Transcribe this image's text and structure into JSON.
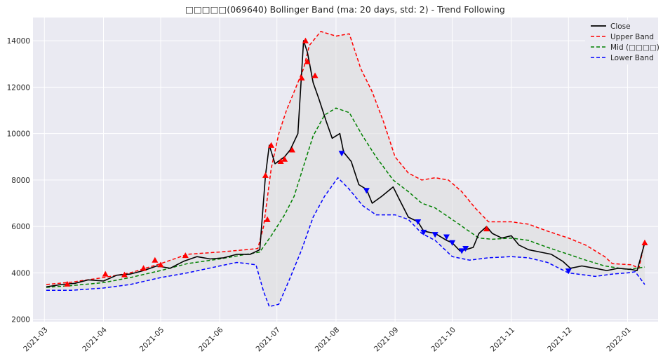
{
  "chart_data": {
    "type": "line",
    "title": "□□□□□(069640) Bollinger Band (ma: 20 days, std: 2) - Trend Following",
    "xlabel": "",
    "ylabel": "",
    "x_ticks": [
      "2021-03",
      "2021-04",
      "2021-05",
      "2021-06",
      "2021-07",
      "2021-08",
      "2021-09",
      "2021-10",
      "2021-11",
      "2021-12",
      "2022-01"
    ],
    "y_ticks": [
      2000,
      4000,
      6000,
      8000,
      10000,
      12000,
      14000
    ],
    "xlim": [
      "2021-02-23",
      "2022-01-17"
    ],
    "ylim": [
      1900,
      15000
    ],
    "grid": true,
    "legend_position": "top-right",
    "series": [
      {
        "name": "Close",
        "color": "#000000",
        "dash": "solid",
        "points": [
          [
            "2021-03-02",
            3400
          ],
          [
            "2021-03-10",
            3500
          ],
          [
            "2021-03-17",
            3550
          ],
          [
            "2021-03-24",
            3700
          ],
          [
            "2021-04-01",
            3650
          ],
          [
            "2021-04-08",
            3900
          ],
          [
            "2021-04-15",
            3950
          ],
          [
            "2021-04-22",
            4100
          ],
          [
            "2021-04-29",
            4300
          ],
          [
            "2021-05-06",
            4200
          ],
          [
            "2021-05-13",
            4500
          ],
          [
            "2021-05-20",
            4700
          ],
          [
            "2021-05-27",
            4600
          ],
          [
            "2021-06-03",
            4650
          ],
          [
            "2021-06-10",
            4800
          ],
          [
            "2021-06-17",
            4800
          ],
          [
            "2021-06-22",
            5000
          ],
          [
            "2021-06-25",
            8200
          ],
          [
            "2021-06-27",
            9500
          ],
          [
            "2021-06-30",
            8700
          ],
          [
            "2021-07-05",
            9000
          ],
          [
            "2021-07-08",
            9300
          ],
          [
            "2021-07-12",
            10000
          ],
          [
            "2021-07-15",
            14000
          ],
          [
            "2021-07-17",
            13500
          ],
          [
            "2021-07-20",
            12200
          ],
          [
            "2021-07-23",
            11500
          ],
          [
            "2021-07-27",
            10500
          ],
          [
            "2021-07-30",
            9800
          ],
          [
            "2021-08-03",
            10000
          ],
          [
            "2021-08-05",
            9200
          ],
          [
            "2021-08-09",
            8800
          ],
          [
            "2021-08-13",
            7800
          ],
          [
            "2021-08-17",
            7600
          ],
          [
            "2021-08-20",
            7000
          ],
          [
            "2021-08-25",
            7300
          ],
          [
            "2021-08-31",
            7700
          ],
          [
            "2021-09-03",
            7200
          ],
          [
            "2021-09-08",
            6400
          ],
          [
            "2021-09-13",
            6200
          ],
          [
            "2021-09-16",
            5800
          ],
          [
            "2021-09-22",
            5700
          ],
          [
            "2021-09-28",
            5400
          ],
          [
            "2021-10-01",
            5300
          ],
          [
            "2021-10-05",
            4950
          ],
          [
            "2021-10-08",
            5000
          ],
          [
            "2021-10-12",
            5100
          ],
          [
            "2021-10-15",
            5700
          ],
          [
            "2021-10-19",
            6000
          ],
          [
            "2021-10-22",
            5700
          ],
          [
            "2021-10-27",
            5500
          ],
          [
            "2021-11-01",
            5600
          ],
          [
            "2021-11-05",
            5200
          ],
          [
            "2021-11-10",
            5000
          ],
          [
            "2021-11-16",
            4900
          ],
          [
            "2021-11-22",
            4800
          ],
          [
            "2021-11-28",
            4500
          ],
          [
            "2021-12-02",
            4200
          ],
          [
            "2021-12-08",
            4300
          ],
          [
            "2021-12-15",
            4200
          ],
          [
            "2021-12-21",
            4100
          ],
          [
            "2021-12-27",
            4200
          ],
          [
            "2022-01-03",
            4150
          ],
          [
            "2022-01-06",
            4100
          ],
          [
            "2022-01-10",
            5300
          ]
        ]
      },
      {
        "name": "Upper Band",
        "color": "#ff0000",
        "dash": "dashed",
        "points": [
          [
            "2021-03-02",
            3500
          ],
          [
            "2021-03-15",
            3600
          ],
          [
            "2021-04-01",
            3800
          ],
          [
            "2021-04-15",
            4000
          ],
          [
            "2021-05-01",
            4400
          ],
          [
            "2021-05-15",
            4800
          ],
          [
            "2021-06-01",
            4900
          ],
          [
            "2021-06-15",
            5000
          ],
          [
            "2021-06-21",
            5050
          ],
          [
            "2021-06-24",
            6000
          ],
          [
            "2021-06-28",
            8500
          ],
          [
            "2021-07-02",
            10000
          ],
          [
            "2021-07-06",
            11000
          ],
          [
            "2021-07-10",
            11800
          ],
          [
            "2021-07-15",
            12800
          ],
          [
            "2021-07-18",
            13800
          ],
          [
            "2021-07-24",
            14400
          ],
          [
            "2021-08-01",
            14200
          ],
          [
            "2021-08-08",
            14300
          ],
          [
            "2021-08-14",
            12800
          ],
          [
            "2021-08-20",
            11800
          ],
          [
            "2021-08-26",
            10500
          ],
          [
            "2021-09-01",
            9000
          ],
          [
            "2021-09-08",
            8300
          ],
          [
            "2021-09-15",
            8000
          ],
          [
            "2021-09-22",
            8100
          ],
          [
            "2021-09-29",
            8000
          ],
          [
            "2021-10-06",
            7500
          ],
          [
            "2021-10-13",
            6800
          ],
          [
            "2021-10-20",
            6200
          ],
          [
            "2021-11-01",
            6200
          ],
          [
            "2021-11-10",
            6100
          ],
          [
            "2021-11-20",
            5800
          ],
          [
            "2021-12-01",
            5500
          ],
          [
            "2021-12-10",
            5200
          ],
          [
            "2021-12-20",
            4700
          ],
          [
            "2021-12-24",
            4400
          ],
          [
            "2022-01-03",
            4350
          ],
          [
            "2022-01-07",
            4200
          ],
          [
            "2022-01-10",
            5400
          ]
        ]
      },
      {
        "name": "Mid (□□□□)",
        "color": "#008000",
        "dash": "dashed",
        "points": [
          [
            "2021-03-02",
            3380
          ],
          [
            "2021-03-15",
            3450
          ],
          [
            "2021-04-01",
            3580
          ],
          [
            "2021-04-15",
            3800
          ],
          [
            "2021-05-01",
            4100
          ],
          [
            "2021-05-15",
            4400
          ],
          [
            "2021-06-01",
            4600
          ],
          [
            "2021-06-15",
            4800
          ],
          [
            "2021-06-22",
            4900
          ],
          [
            "2021-06-28",
            5600
          ],
          [
            "2021-07-05",
            6500
          ],
          [
            "2021-07-10",
            7300
          ],
          [
            "2021-07-15",
            8600
          ],
          [
            "2021-07-20",
            9900
          ],
          [
            "2021-07-26",
            10800
          ],
          [
            "2021-08-01",
            11100
          ],
          [
            "2021-08-08",
            10900
          ],
          [
            "2021-08-15",
            9900
          ],
          [
            "2021-08-22",
            9000
          ],
          [
            "2021-08-31",
            8000
          ],
          [
            "2021-09-08",
            7500
          ],
          [
            "2021-09-15",
            7000
          ],
          [
            "2021-09-22",
            6800
          ],
          [
            "2021-10-01",
            6300
          ],
          [
            "2021-10-08",
            5900
          ],
          [
            "2021-10-15",
            5500
          ],
          [
            "2021-10-22",
            5450
          ],
          [
            "2021-11-01",
            5500
          ],
          [
            "2021-11-10",
            5400
          ],
          [
            "2021-11-20",
            5100
          ],
          [
            "2021-12-01",
            4800
          ],
          [
            "2021-12-10",
            4550
          ],
          [
            "2021-12-20",
            4300
          ],
          [
            "2022-01-01",
            4150
          ],
          [
            "2022-01-10",
            4250
          ]
        ]
      },
      {
        "name": "Lower Band",
        "color": "#0000ff",
        "dash": "dashed",
        "points": [
          [
            "2021-03-02",
            3250
          ],
          [
            "2021-03-15",
            3250
          ],
          [
            "2021-04-01",
            3350
          ],
          [
            "2021-04-15",
            3500
          ],
          [
            "2021-05-01",
            3800
          ],
          [
            "2021-05-15",
            4000
          ],
          [
            "2021-06-01",
            4300
          ],
          [
            "2021-06-10",
            4450
          ],
          [
            "2021-06-20",
            4350
          ],
          [
            "2021-06-24",
            3200
          ],
          [
            "2021-06-27",
            2550
          ],
          [
            "2021-07-02",
            2650
          ],
          [
            "2021-07-08",
            3800
          ],
          [
            "2021-07-14",
            5000
          ],
          [
            "2021-07-20",
            6400
          ],
          [
            "2021-07-26",
            7300
          ],
          [
            "2021-08-02",
            8100
          ],
          [
            "2021-08-08",
            7600
          ],
          [
            "2021-08-15",
            6900
          ],
          [
            "2021-08-22",
            6500
          ],
          [
            "2021-09-01",
            6500
          ],
          [
            "2021-09-08",
            6300
          ],
          [
            "2021-09-15",
            5700
          ],
          [
            "2021-09-22",
            5400
          ],
          [
            "2021-10-01",
            4700
          ],
          [
            "2021-10-10",
            4550
          ],
          [
            "2021-10-20",
            4650
          ],
          [
            "2021-11-01",
            4700
          ],
          [
            "2021-11-10",
            4650
          ],
          [
            "2021-11-20",
            4450
          ],
          [
            "2021-12-01",
            4000
          ],
          [
            "2021-12-15",
            3850
          ],
          [
            "2021-12-24",
            3950
          ],
          [
            "2022-01-01",
            4000
          ],
          [
            "2022-01-05",
            4050
          ],
          [
            "2022-01-10",
            3500
          ]
        ]
      }
    ],
    "markers": {
      "buy": {
        "color": "#ff0000",
        "shape": "triangle-up",
        "x": [
          "2021-03-13",
          "2021-04-02",
          "2021-04-12",
          "2021-04-22",
          "2021-04-28",
          "2021-05-01",
          "2021-05-14",
          "2021-06-25",
          "2021-06-26",
          "2021-06-28",
          "2021-07-03",
          "2021-07-05",
          "2021-07-09",
          "2021-07-14",
          "2021-07-16",
          "2021-07-17",
          "2021-07-21",
          "2021-10-19",
          "2022-01-10"
        ],
        "y": [
          3520,
          3950,
          3920,
          4200,
          4550,
          4350,
          4750,
          8200,
          6300,
          9500,
          8800,
          8900,
          9300,
          12400,
          14000,
          13100,
          12500,
          5900,
          5300
        ]
      },
      "sell": {
        "color": "#0000ff",
        "shape": "triangle-down",
        "x": [
          "2021-08-04",
          "2021-08-17",
          "2021-09-13",
          "2021-09-16",
          "2021-09-22",
          "2021-09-28",
          "2021-10-01",
          "2021-10-06",
          "2021-10-08",
          "2021-12-01"
        ],
        "y": [
          9150,
          7550,
          6200,
          5750,
          5650,
          5550,
          5300,
          4950,
          5050,
          4080
        ]
      }
    }
  }
}
